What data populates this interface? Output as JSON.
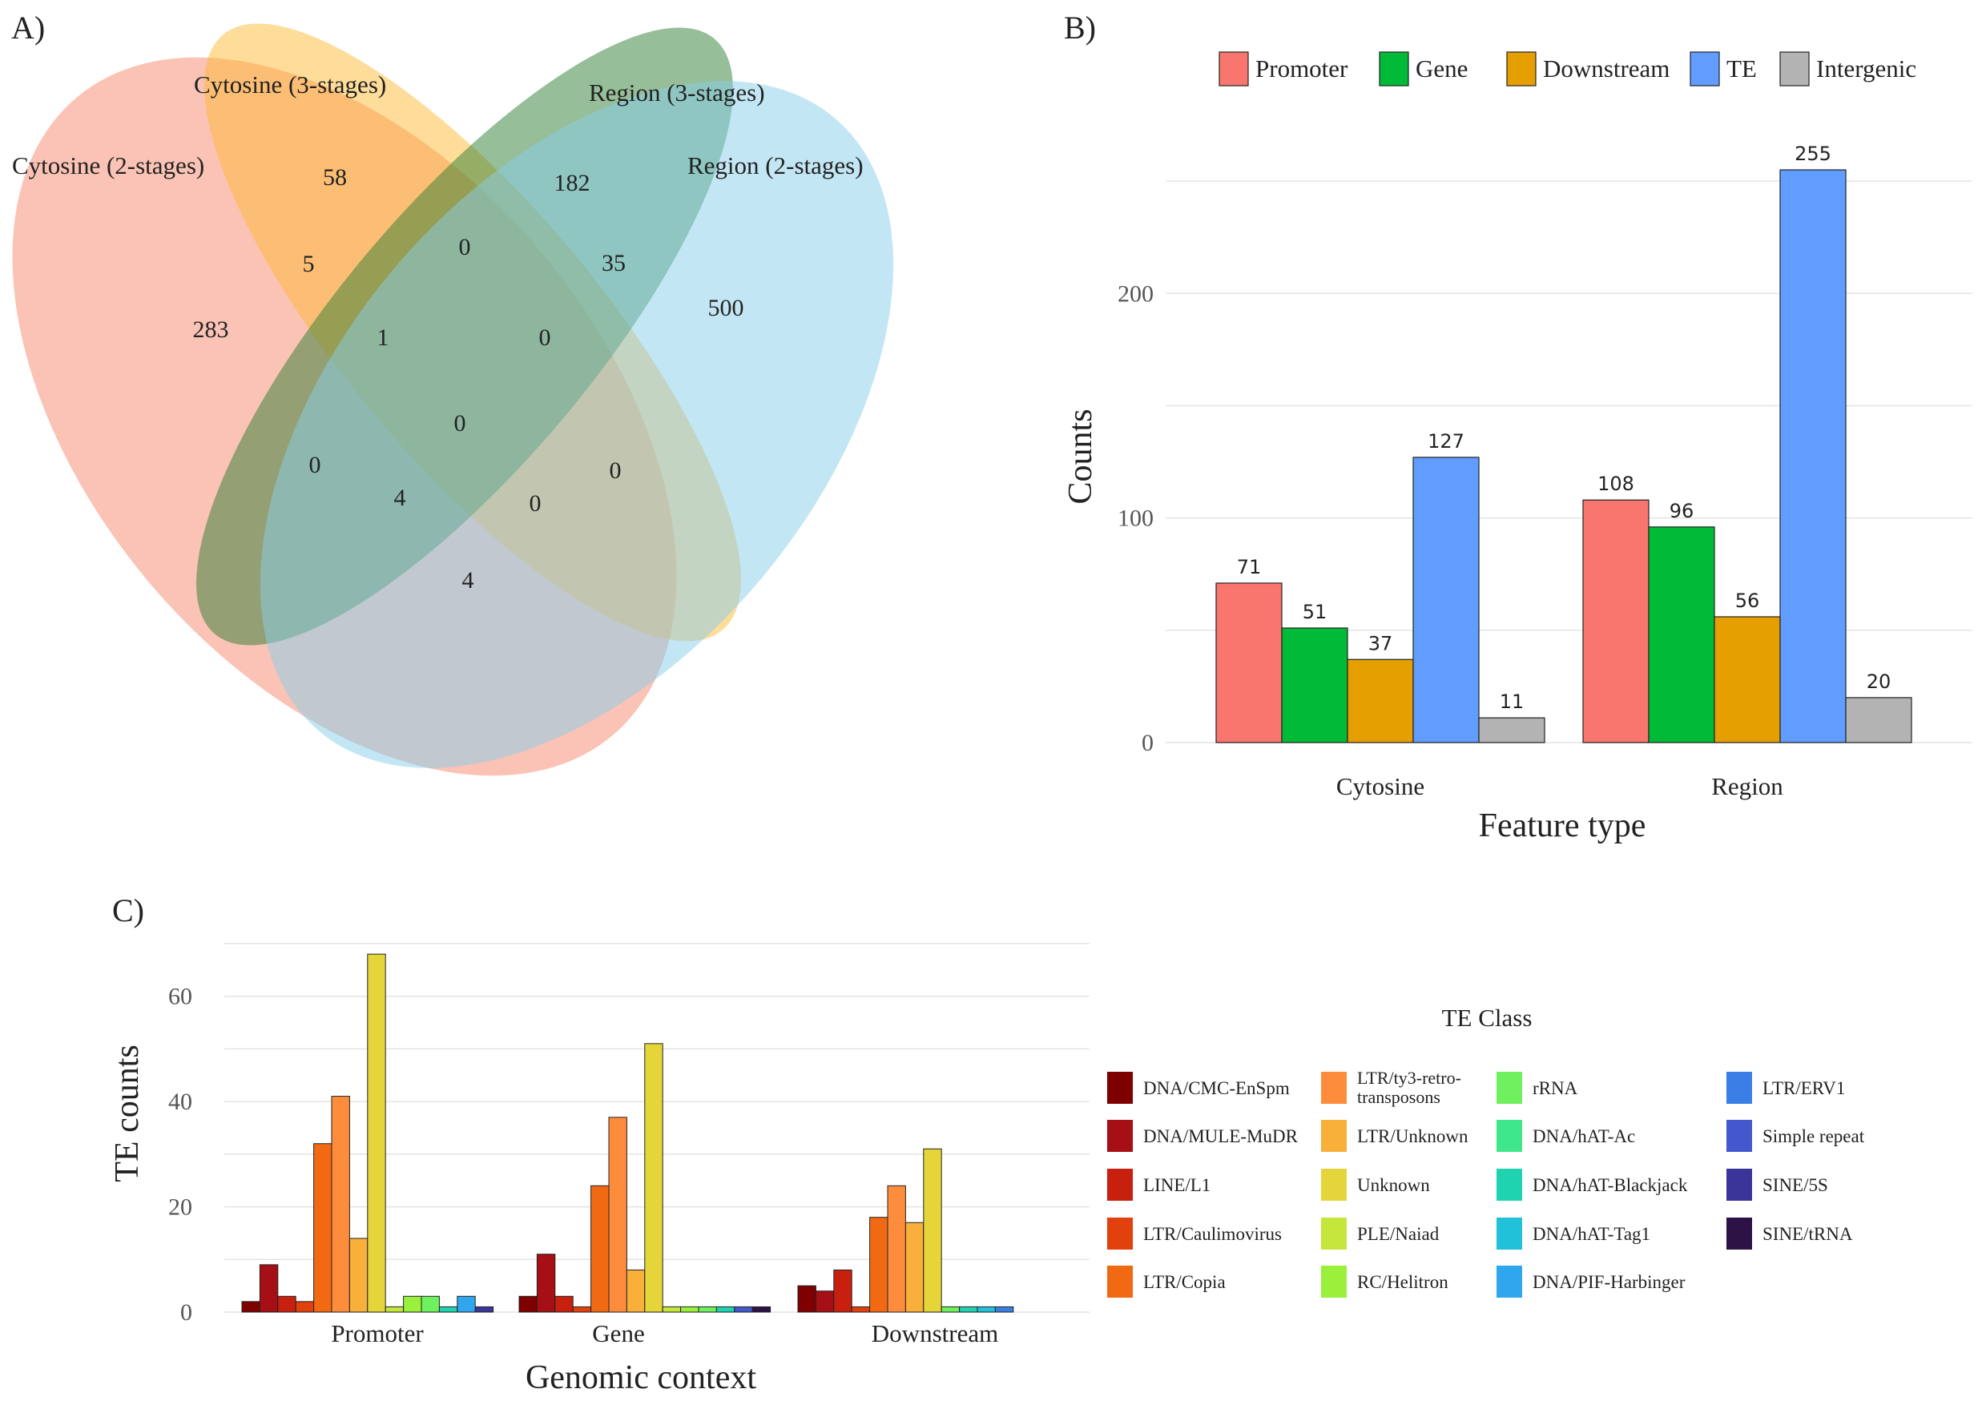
{
  "panels": {
    "a": {
      "label": "A)"
    },
    "b": {
      "label": "B)"
    },
    "c": {
      "label": "C)"
    }
  },
  "chart_data": [
    {
      "type": "venn",
      "panel": "A",
      "sets": [
        {
          "name": "Cytosine (2-stages)",
          "color": "#f7876b"
        },
        {
          "name": "Cytosine (3-stages)",
          "color": "#fdb933"
        },
        {
          "name": "Region (3-stages)",
          "color": "#2e7d32"
        },
        {
          "name": "Region (2-stages)",
          "color": "#87ceeb"
        }
      ],
      "counts": {
        "C2_only": 283,
        "C3_only": 58,
        "R3_only": 182,
        "R2_only": 500,
        "C2_C3": 5,
        "C3_R3": 0,
        "R3_R2": 35,
        "C2_R2": 4,
        "C2_C3_R3": 1,
        "C3_R3_R2": 0,
        "C2_R3_R2": 4,
        "C2_C3_R2": 0,
        "C2_R3": 0,
        "C3_R2": 0,
        "all_four": 0
      }
    },
    {
      "type": "bar",
      "panel": "B",
      "categories": [
        "Cytosine",
        "Region"
      ],
      "series": [
        {
          "name": "Promoter",
          "color": "#f8766d",
          "values": [
            71,
            108
          ]
        },
        {
          "name": "Gene",
          "color": "#00ba38",
          "values": [
            51,
            96
          ]
        },
        {
          "name": "Downstream",
          "color": "#e69f00",
          "values": [
            37,
            56
          ]
        },
        {
          "name": "TE",
          "color": "#619cff",
          "values": [
            127,
            255
          ]
        },
        {
          "name": "Intergenic",
          "color": "#b3b3b3",
          "values": [
            11,
            20
          ]
        }
      ],
      "xlabel": "Feature type",
      "ylabel": "Counts",
      "ylim": [
        0,
        270
      ],
      "yticks": [
        0,
        100,
        200
      ],
      "legend_position": "top"
    },
    {
      "type": "bar",
      "panel": "C",
      "categories": [
        "Promoter",
        "Gene",
        "Downstream"
      ],
      "series": [
        {
          "name": "DNA/CMC-EnSpm",
          "color": "#7f0000",
          "values": [
            2,
            3,
            5
          ]
        },
        {
          "name": "DNA/MULE-MuDR",
          "color": "#a50f15",
          "values": [
            9,
            11,
            4
          ]
        },
        {
          "name": "LINE/L1",
          "color": "#c8200e",
          "values": [
            3,
            3,
            8
          ]
        },
        {
          "name": "LTR/Caulimovirus",
          "color": "#e2400d",
          "values": [
            2,
            1,
            1
          ]
        },
        {
          "name": "LTR/Copia",
          "color": "#f16913",
          "values": [
            32,
            24,
            18
          ]
        },
        {
          "name": "LTR/ty3-retro-transposons",
          "color": "#fd8d3c",
          "values": [
            41,
            37,
            24
          ]
        },
        {
          "name": "LTR/Unknown",
          "color": "#f8b03a",
          "values": [
            14,
            8,
            17
          ]
        },
        {
          "name": "Unknown",
          "color": "#e5d53a",
          "values": [
            68,
            51,
            31
          ]
        },
        {
          "name": "PLE/Naiad",
          "color": "#c5e63b",
          "values": [
            1,
            1,
            0
          ]
        },
        {
          "name": "RC/Helitron",
          "color": "#9af03b",
          "values": [
            3,
            1,
            0
          ]
        },
        {
          "name": "rRNA",
          "color": "#6ef05f",
          "values": [
            3,
            1,
            1
          ]
        },
        {
          "name": "DNA/hAT-Ac",
          "color": "#3ee88a",
          "values": [
            0,
            0,
            0
          ]
        },
        {
          "name": "DNA/hAT-Blackjack",
          "color": "#1fd3b1",
          "values": [
            1,
            1,
            1
          ]
        },
        {
          "name": "DNA/hAT-Tag1",
          "color": "#22c1da",
          "values": [
            0,
            0,
            1
          ]
        },
        {
          "name": "DNA/PIF-Harbinger",
          "color": "#2fa6ee",
          "values": [
            3,
            1,
            0
          ]
        },
        {
          "name": "LTR/ERV1",
          "color": "#3a7fe6",
          "values": [
            0,
            0,
            1
          ]
        },
        {
          "name": "Simple repeat",
          "color": "#4358cc",
          "values": [
            0,
            1,
            0
          ]
        },
        {
          "name": "SINE/5S",
          "color": "#3b3599",
          "values": [
            1,
            0,
            0
          ]
        },
        {
          "name": "SINE/tRNA",
          "color": "#2c1245",
          "values": [
            0,
            1,
            0
          ]
        }
      ],
      "xlabel": "Genomic context",
      "ylabel": "TE counts",
      "ylim": [
        0,
        70
      ],
      "yticks": [
        0,
        20,
        40,
        60
      ],
      "legend_title": "TE Class",
      "legend_position": "right"
    }
  ]
}
